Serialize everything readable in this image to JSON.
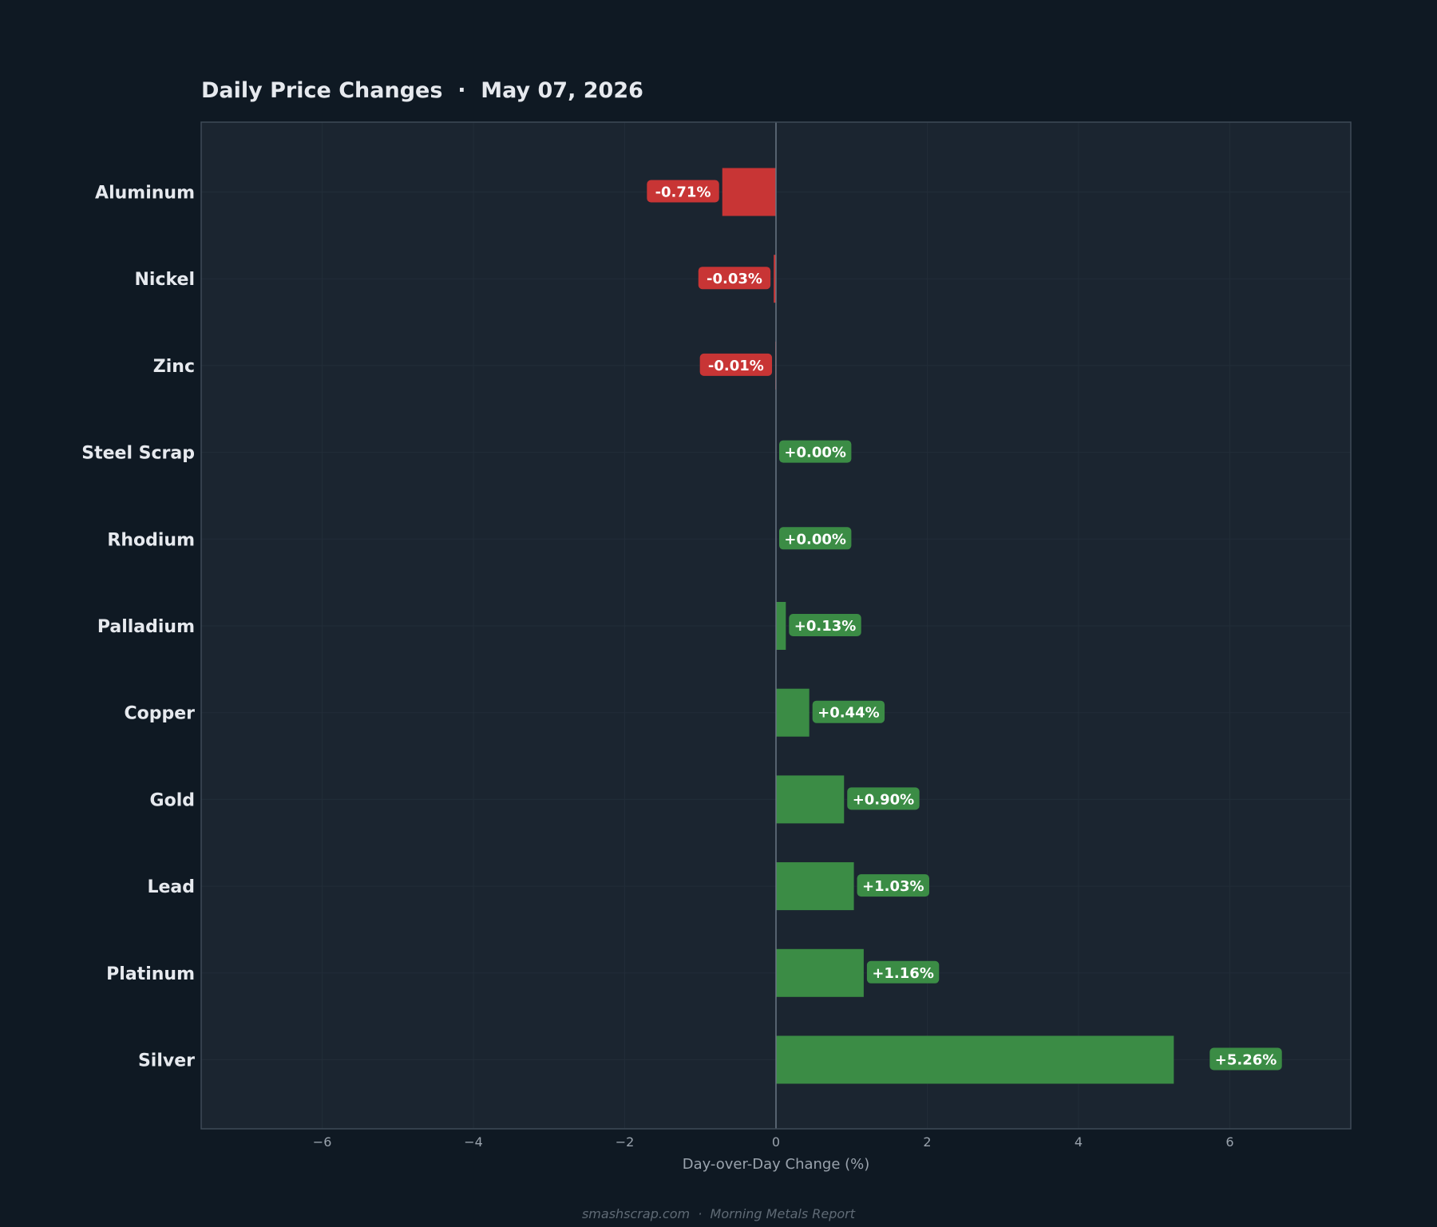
{
  "chart_data": {
    "type": "bar",
    "orientation": "horizontal",
    "title": "Daily Price Changes  ·  May 07, 2026",
    "xlabel": "Day-over-Day Change (%)",
    "ylabel": "",
    "xlim": [
      -7.6,
      7.6
    ],
    "x_ticks": [
      -6,
      -4,
      -2,
      0,
      2,
      4,
      6
    ],
    "x_tick_labels": [
      "−6",
      "−4",
      "−2",
      "0",
      "2",
      "4",
      "6"
    ],
    "grid": true,
    "categories": [
      "Aluminum",
      "Nickel",
      "Zinc",
      "Steel Scrap",
      "Rhodium",
      "Palladium",
      "Copper",
      "Gold",
      "Lead",
      "Platinum",
      "Silver"
    ],
    "values": [
      -0.71,
      -0.03,
      -0.01,
      0.0,
      0.0,
      0.13,
      0.44,
      0.9,
      1.03,
      1.16,
      5.26
    ],
    "data_labels": [
      "-0.71%",
      "-0.03%",
      "-0.01%",
      "+0.00%",
      "+0.00%",
      "+0.13%",
      "+0.44%",
      "+0.90%",
      "+1.03%",
      "+1.16%",
      "+5.26%"
    ],
    "colors": {
      "positive": "#3b8c45",
      "negative": "#c83535",
      "plot_background": "#1b2530",
      "page_background": "#0f1923"
    }
  },
  "footer": "smashscrap.com  ·  Morning Metals Report"
}
